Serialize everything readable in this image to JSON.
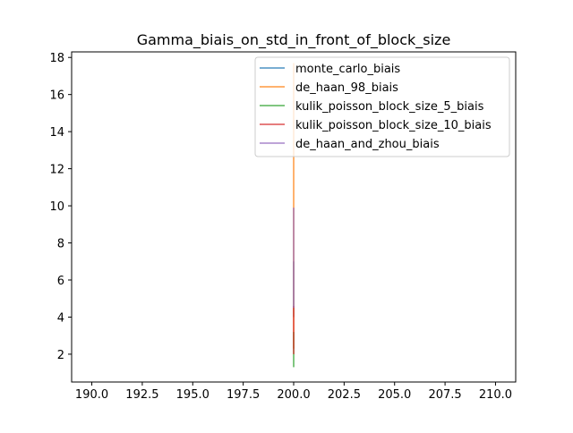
{
  "chart_data": {
    "type": "line",
    "title": "Gamma_biais_on_std_in_front_of_block_size",
    "xlabel": "",
    "ylabel": "",
    "xlim": [
      189.0,
      211.0
    ],
    "ylim": [
      0.5,
      18.3
    ],
    "x_ticks": [
      190.0,
      192.5,
      195.0,
      197.5,
      200.0,
      202.5,
      205.0,
      207.5,
      210.0
    ],
    "x_tick_labels": [
      "190.0",
      "192.5",
      "195.0",
      "197.5",
      "200.0",
      "202.5",
      "205.0",
      "207.5",
      "210.0"
    ],
    "y_ticks": [
      2,
      4,
      6,
      8,
      10,
      12,
      14,
      16,
      18
    ],
    "y_tick_labels": [
      "2",
      "4",
      "6",
      "8",
      "10",
      "12",
      "14",
      "16",
      "18"
    ],
    "grid": false,
    "legend_position": "top-right",
    "series": [
      {
        "name": "monte_carlo_biais",
        "color": "#1f77b4",
        "x": [
          200,
          200
        ],
        "y": [
          4.0,
          7.0
        ]
      },
      {
        "name": "de_haan_98_biais",
        "color": "#ff7f0e",
        "x": [
          200,
          200
        ],
        "y": [
          2.3,
          17.7
        ]
      },
      {
        "name": "kulik_poisson_block_size_5_biais",
        "color": "#2ca02c",
        "x": [
          200,
          200
        ],
        "y": [
          1.3,
          3.2
        ]
      },
      {
        "name": "kulik_poisson_block_size_10_biais",
        "color": "#d62728",
        "x": [
          200,
          200
        ],
        "y": [
          2.0,
          4.6
        ]
      },
      {
        "name": "de_haan_and_zhou_biais",
        "color": "#9467bd",
        "x": [
          200,
          200
        ],
        "y": [
          4.5,
          9.9
        ]
      }
    ]
  }
}
